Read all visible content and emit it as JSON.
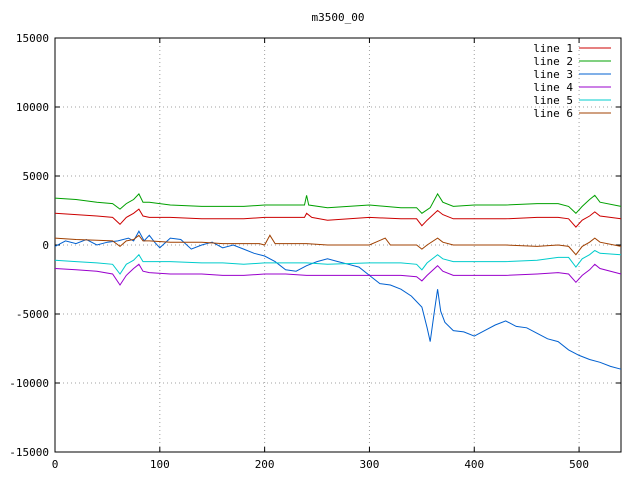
{
  "chart_data": {
    "type": "line",
    "title": "m3500_00",
    "xlabel": "",
    "ylabel": "",
    "xlim": [
      0,
      540
    ],
    "ylim": [
      -15000,
      15000
    ],
    "xticks": [
      0,
      100,
      200,
      300,
      400,
      500
    ],
    "yticks": [
      -15000,
      -10000,
      -5000,
      0,
      5000,
      10000,
      15000
    ],
    "grid": true,
    "legend_position": "top-right",
    "series": [
      {
        "name": "line 1",
        "color": "#cc0000",
        "points": [
          [
            0,
            2300
          ],
          [
            20,
            2200
          ],
          [
            40,
            2100
          ],
          [
            55,
            2000
          ],
          [
            62,
            1500
          ],
          [
            68,
            2000
          ],
          [
            75,
            2300
          ],
          [
            80,
            2600
          ],
          [
            84,
            2100
          ],
          [
            90,
            2000
          ],
          [
            110,
            2000
          ],
          [
            140,
            1900
          ],
          [
            160,
            1900
          ],
          [
            180,
            1900
          ],
          [
            200,
            2000
          ],
          [
            220,
            2000
          ],
          [
            238,
            2000
          ],
          [
            240,
            2300
          ],
          [
            245,
            2000
          ],
          [
            260,
            1800
          ],
          [
            300,
            2000
          ],
          [
            330,
            1900
          ],
          [
            345,
            1900
          ],
          [
            350,
            1400
          ],
          [
            355,
            1800
          ],
          [
            365,
            2500
          ],
          [
            370,
            2200
          ],
          [
            380,
            1900
          ],
          [
            400,
            1900
          ],
          [
            430,
            1900
          ],
          [
            460,
            2000
          ],
          [
            480,
            2000
          ],
          [
            490,
            1900
          ],
          [
            497,
            1300
          ],
          [
            503,
            1800
          ],
          [
            510,
            2100
          ],
          [
            515,
            2400
          ],
          [
            520,
            2100
          ],
          [
            540,
            1900
          ]
        ]
      },
      {
        "name": "line 2",
        "color": "#00a000",
        "points": [
          [
            0,
            3400
          ],
          [
            20,
            3300
          ],
          [
            40,
            3100
          ],
          [
            55,
            3000
          ],
          [
            62,
            2600
          ],
          [
            68,
            3000
          ],
          [
            75,
            3300
          ],
          [
            80,
            3700
          ],
          [
            84,
            3100
          ],
          [
            90,
            3100
          ],
          [
            110,
            2900
          ],
          [
            140,
            2800
          ],
          [
            160,
            2800
          ],
          [
            180,
            2800
          ],
          [
            200,
            2900
          ],
          [
            220,
            2900
          ],
          [
            238,
            2900
          ],
          [
            240,
            3600
          ],
          [
            242,
            2900
          ],
          [
            260,
            2700
          ],
          [
            300,
            2900
          ],
          [
            330,
            2700
          ],
          [
            345,
            2700
          ],
          [
            350,
            2300
          ],
          [
            358,
            2700
          ],
          [
            365,
            3700
          ],
          [
            370,
            3100
          ],
          [
            380,
            2800
          ],
          [
            400,
            2900
          ],
          [
            430,
            2900
          ],
          [
            460,
            3000
          ],
          [
            480,
            3000
          ],
          [
            490,
            2800
          ],
          [
            497,
            2300
          ],
          [
            503,
            2800
          ],
          [
            510,
            3300
          ],
          [
            515,
            3600
          ],
          [
            520,
            3100
          ],
          [
            540,
            2800
          ]
        ]
      },
      {
        "name": "line 3",
        "color": "#0060d0",
        "points": [
          [
            0,
            -100
          ],
          [
            10,
            300
          ],
          [
            20,
            100
          ],
          [
            30,
            400
          ],
          [
            40,
            0
          ],
          [
            50,
            200
          ],
          [
            60,
            300
          ],
          [
            70,
            500
          ],
          [
            75,
            300
          ],
          [
            80,
            1000
          ],
          [
            85,
            300
          ],
          [
            90,
            700
          ],
          [
            95,
            200
          ],
          [
            100,
            -200
          ],
          [
            110,
            500
          ],
          [
            120,
            400
          ],
          [
            130,
            -300
          ],
          [
            140,
            0
          ],
          [
            150,
            200
          ],
          [
            160,
            -200
          ],
          [
            170,
            0
          ],
          [
            180,
            -300
          ],
          [
            190,
            -600
          ],
          [
            200,
            -800
          ],
          [
            210,
            -1200
          ],
          [
            220,
            -1800
          ],
          [
            230,
            -1900
          ],
          [
            240,
            -1500
          ],
          [
            250,
            -1200
          ],
          [
            260,
            -1000
          ],
          [
            270,
            -1200
          ],
          [
            280,
            -1400
          ],
          [
            290,
            -1600
          ],
          [
            300,
            -2200
          ],
          [
            310,
            -2800
          ],
          [
            320,
            -2900
          ],
          [
            330,
            -3200
          ],
          [
            340,
            -3700
          ],
          [
            350,
            -4500
          ],
          [
            355,
            -6000
          ],
          [
            358,
            -7000
          ],
          [
            362,
            -4800
          ],
          [
            365,
            -3200
          ],
          [
            368,
            -4800
          ],
          [
            372,
            -5600
          ],
          [
            380,
            -6200
          ],
          [
            390,
            -6300
          ],
          [
            400,
            -6600
          ],
          [
            410,
            -6200
          ],
          [
            420,
            -5800
          ],
          [
            430,
            -5500
          ],
          [
            440,
            -5900
          ],
          [
            450,
            -6000
          ],
          [
            460,
            -6400
          ],
          [
            470,
            -6800
          ],
          [
            480,
            -7000
          ],
          [
            490,
            -7600
          ],
          [
            500,
            -8000
          ],
          [
            510,
            -8300
          ],
          [
            520,
            -8500
          ],
          [
            530,
            -8800
          ],
          [
            540,
            -9000
          ]
        ]
      },
      {
        "name": "line 4",
        "color": "#9900cc",
        "points": [
          [
            0,
            -1700
          ],
          [
            20,
            -1800
          ],
          [
            40,
            -1900
          ],
          [
            55,
            -2100
          ],
          [
            62,
            -2900
          ],
          [
            68,
            -2200
          ],
          [
            75,
            -1700
          ],
          [
            80,
            -1400
          ],
          [
            84,
            -1900
          ],
          [
            90,
            -2000
          ],
          [
            110,
            -2100
          ],
          [
            140,
            -2100
          ],
          [
            160,
            -2200
          ],
          [
            180,
            -2200
          ],
          [
            200,
            -2100
          ],
          [
            220,
            -2100
          ],
          [
            240,
            -2200
          ],
          [
            260,
            -2200
          ],
          [
            300,
            -2200
          ],
          [
            330,
            -2200
          ],
          [
            345,
            -2300
          ],
          [
            350,
            -2600
          ],
          [
            355,
            -2200
          ],
          [
            365,
            -1500
          ],
          [
            370,
            -1900
          ],
          [
            380,
            -2200
          ],
          [
            400,
            -2200
          ],
          [
            430,
            -2200
          ],
          [
            460,
            -2100
          ],
          [
            480,
            -2000
          ],
          [
            490,
            -2100
          ],
          [
            497,
            -2700
          ],
          [
            503,
            -2200
          ],
          [
            510,
            -1800
          ],
          [
            515,
            -1400
          ],
          [
            520,
            -1700
          ],
          [
            540,
            -2100
          ]
        ]
      },
      {
        "name": "line 5",
        "color": "#00cccc",
        "points": [
          [
            0,
            -1100
          ],
          [
            20,
            -1200
          ],
          [
            40,
            -1300
          ],
          [
            55,
            -1400
          ],
          [
            62,
            -2100
          ],
          [
            68,
            -1400
          ],
          [
            75,
            -1100
          ],
          [
            80,
            -700
          ],
          [
            84,
            -1200
          ],
          [
            90,
            -1200
          ],
          [
            110,
            -1200
          ],
          [
            140,
            -1300
          ],
          [
            160,
            -1300
          ],
          [
            180,
            -1400
          ],
          [
            200,
            -1300
          ],
          [
            220,
            -1300
          ],
          [
            240,
            -1300
          ],
          [
            260,
            -1400
          ],
          [
            300,
            -1300
          ],
          [
            330,
            -1300
          ],
          [
            345,
            -1400
          ],
          [
            350,
            -1800
          ],
          [
            355,
            -1300
          ],
          [
            365,
            -700
          ],
          [
            370,
            -1000
          ],
          [
            380,
            -1200
          ],
          [
            400,
            -1200
          ],
          [
            430,
            -1200
          ],
          [
            460,
            -1100
          ],
          [
            480,
            -900
          ],
          [
            490,
            -900
          ],
          [
            497,
            -1600
          ],
          [
            503,
            -1000
          ],
          [
            510,
            -700
          ],
          [
            515,
            -400
          ],
          [
            520,
            -600
          ],
          [
            540,
            -700
          ]
        ]
      },
      {
        "name": "line 6",
        "color": "#a04000",
        "points": [
          [
            0,
            500
          ],
          [
            20,
            400
          ],
          [
            40,
            350
          ],
          [
            55,
            300
          ],
          [
            62,
            -100
          ],
          [
            68,
            300
          ],
          [
            75,
            400
          ],
          [
            80,
            700
          ],
          [
            84,
            300
          ],
          [
            90,
            300
          ],
          [
            110,
            200
          ],
          [
            140,
            200
          ],
          [
            160,
            100
          ],
          [
            180,
            100
          ],
          [
            195,
            100
          ],
          [
            200,
            0
          ],
          [
            205,
            700
          ],
          [
            210,
            100
          ],
          [
            220,
            100
          ],
          [
            240,
            100
          ],
          [
            260,
            0
          ],
          [
            300,
            0
          ],
          [
            315,
            500
          ],
          [
            320,
            0
          ],
          [
            330,
            0
          ],
          [
            345,
            0
          ],
          [
            350,
            -300
          ],
          [
            355,
            0
          ],
          [
            365,
            500
          ],
          [
            370,
            200
          ],
          [
            380,
            0
          ],
          [
            400,
            0
          ],
          [
            430,
            0
          ],
          [
            460,
            -100
          ],
          [
            480,
            0
          ],
          [
            490,
            -100
          ],
          [
            497,
            -700
          ],
          [
            503,
            -100
          ],
          [
            510,
            200
          ],
          [
            515,
            500
          ],
          [
            520,
            200
          ],
          [
            540,
            -100
          ]
        ]
      }
    ]
  }
}
